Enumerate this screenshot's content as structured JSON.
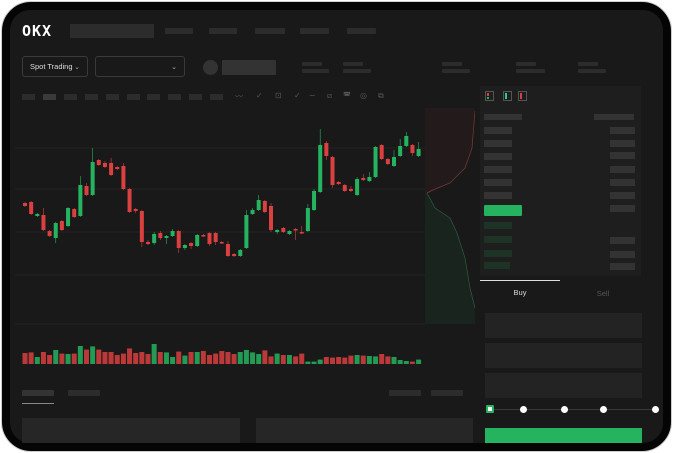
{
  "header": {
    "logo": "OKX"
  },
  "controls": {
    "market_type": "Spot Trading",
    "pair_select": ""
  },
  "trade_form": {
    "tabs": [
      "Buy",
      "Sell"
    ],
    "active_tab": "Buy",
    "leverage_slider": {
      "value": 0,
      "stops": 5
    }
  },
  "colors": {
    "up": "#25b35f",
    "down": "#d9403f",
    "accent": "#25b35f",
    "background": "#191919"
  },
  "toolbar_icons": [
    "indicator-icon",
    "indicator-dropdown-icon",
    "interval-icon",
    "dropdown-icon",
    "line-tool-icon",
    "pencil-icon",
    "camera-icon",
    "settings-icon",
    "fullscreen-icon"
  ],
  "orderbook_icons": [
    "orderbook-both-icon",
    "orderbook-bids-icon",
    "orderbook-asks-icon"
  ],
  "chart_data": {
    "type": "candlestick",
    "candles": [
      [
        150,
        147,
        151,
        146
      ],
      [
        151,
        139,
        152,
        138
      ],
      [
        137,
        139,
        140,
        136
      ],
      [
        138,
        123,
        145,
        122
      ],
      [
        122,
        117,
        123,
        116
      ],
      [
        115,
        130,
        131,
        110
      ],
      [
        132,
        123,
        133,
        122
      ],
      [
        127,
        145,
        146,
        126
      ],
      [
        144,
        136,
        145,
        135
      ],
      [
        137,
        168,
        177,
        136
      ],
      [
        167,
        158,
        170,
        157
      ],
      [
        158,
        191,
        205,
        157
      ],
      [
        193,
        188,
        194,
        187
      ],
      [
        190,
        186,
        192,
        185
      ],
      [
        190,
        178,
        195,
        177
      ],
      [
        186,
        184,
        187,
        183
      ],
      [
        187,
        164,
        190,
        163
      ],
      [
        164,
        141,
        165,
        140
      ],
      [
        144,
        142,
        145,
        140
      ],
      [
        142,
        111,
        143,
        106
      ],
      [
        111,
        109,
        113,
        108
      ],
      [
        110,
        119,
        121,
        108
      ],
      [
        120,
        115,
        122,
        113
      ],
      [
        115,
        117,
        118,
        109
      ],
      [
        117,
        122,
        124,
        116
      ],
      [
        122,
        105,
        123,
        100
      ],
      [
        105,
        108,
        109,
        103
      ],
      [
        110,
        107,
        111,
        104
      ],
      [
        107,
        118,
        119,
        106
      ],
      [
        118,
        117,
        119,
        116
      ],
      [
        120,
        109,
        121,
        107
      ],
      [
        120,
        111,
        121,
        108
      ],
      [
        111,
        110,
        112,
        109
      ],
      [
        109,
        97,
        112,
        96
      ],
      [
        99,
        97,
        100,
        96
      ],
      [
        97,
        103,
        104,
        96
      ],
      [
        105,
        138,
        143,
        104
      ],
      [
        139,
        143,
        145,
        138
      ],
      [
        143,
        153,
        158,
        142
      ],
      [
        152,
        141,
        153,
        140
      ],
      [
        147,
        123,
        150,
        121
      ],
      [
        121,
        123,
        124,
        119
      ],
      [
        125,
        121,
        126,
        120
      ],
      [
        119,
        122,
        123,
        118
      ],
      [
        124,
        123,
        125,
        113
      ],
      [
        121,
        120,
        127,
        119
      ],
      [
        122,
        145,
        149,
        121
      ],
      [
        143,
        162,
        164,
        142
      ],
      [
        161,
        208,
        224,
        160
      ],
      [
        210,
        197,
        212,
        193
      ],
      [
        196,
        168,
        197,
        165
      ],
      [
        171,
        169,
        172,
        168
      ],
      [
        168,
        162,
        169,
        161
      ],
      [
        164,
        162,
        167,
        161
      ],
      [
        158,
        174,
        176,
        157
      ],
      [
        175,
        173,
        179,
        172
      ],
      [
        172,
        176,
        181,
        171
      ],
      [
        176,
        206,
        207,
        175
      ],
      [
        208,
        194,
        209,
        193
      ],
      [
        194,
        189,
        195,
        188
      ],
      [
        187,
        196,
        203,
        186
      ],
      [
        197,
        207,
        214,
        196
      ],
      [
        207,
        217,
        221,
        206
      ],
      [
        208,
        200,
        209,
        197
      ],
      [
        197,
        204,
        211,
        196
      ]
    ],
    "volumes": [
      55,
      58,
      35,
      60,
      45,
      70,
      52,
      50,
      52,
      90,
      72,
      88,
      72,
      60,
      60,
      45,
      52,
      78,
      55,
      60,
      50,
      100,
      60,
      58,
      35,
      62,
      42,
      60,
      60,
      65,
      45,
      52,
      65,
      60,
      50,
      60,
      70,
      58,
      50,
      68,
      38,
      52,
      45,
      45,
      38,
      52,
      12,
      12,
      22,
      35,
      32,
      35,
      32,
      42,
      45,
      42,
      40,
      38,
      50,
      38,
      35,
      20,
      15,
      12,
      22
    ]
  }
}
